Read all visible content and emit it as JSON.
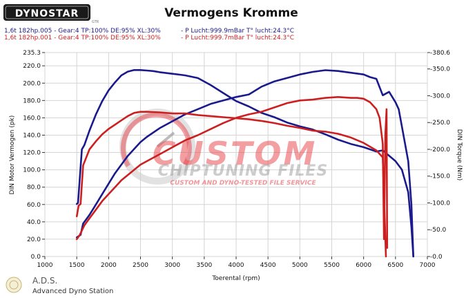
{
  "window": {
    "brand": "DYNOSTAR",
    "brand_sub": "GTR",
    "title": "Vermogens Kromme"
  },
  "runs": [
    {
      "info": "1,6t 182hp.005 - Gear:4 TP:100% DE:95% XL:30%",
      "cond": "- P Lucht:999.9mBar T° lucht:24.3°C",
      "color": "#1a1a8c"
    },
    {
      "info": "1,6t 182hp.001 - Gear:4 TP:100% DE:95% XL:30%",
      "cond": "- P Lucht:999.7mBar T° lucht:24.3°C",
      "color": "#cc1f1f"
    }
  ],
  "watermark": {
    "line1": "CUSTOM",
    "line2": "CHIPTUNING FILES",
    "line3": "CUSTOM AND DYNO-TESTED FILE SERVICE"
  },
  "footer": {
    "logo_text": "A.D.S.",
    "subtitle": "Advanced Dyno Station"
  },
  "colors": {
    "blue": "#1a1a8c",
    "red": "#cc1f1f",
    "grid": "#d4d4d4",
    "watermark_red": "#e8474e",
    "watermark_gray": "#8a8a8a"
  },
  "chart_data": {
    "type": "line",
    "title": "Vermogens Kromme",
    "xlabel": "Toerental (rpm)",
    "ylabel_left": "DIN Motor Vermogen (pk)",
    "ylabel_right": "DIN Torque (Nm)",
    "xlim": [
      1000,
      7000
    ],
    "ylim_left": [
      0,
      235.3
    ],
    "ylim_right": [
      0,
      380.6
    ],
    "x_ticks": [
      "1000",
      "1500",
      "2000",
      "2500",
      "3000",
      "3500",
      "4000",
      "4500",
      "5000",
      "5500",
      "6000",
      "6500",
      "7000"
    ],
    "y_ticks_left": [
      "0.0",
      "20.0",
      "40.0",
      "60.0",
      "80.0",
      "100.0",
      "120.0",
      "140.0",
      "160.0",
      "180.0",
      "200.0",
      "220.0",
      "235.3"
    ],
    "y_ticks_right": [
      "-0.0",
      "-50.0",
      "-100.0",
      "-150.0",
      "-200.0",
      "-250.0",
      "-300.0",
      "-350.0",
      "-380.6"
    ],
    "grid": true,
    "series": [
      {
        "name": "1,6t 182hp.005",
        "axis": "right",
        "color": "#1a1a8c",
        "x": [
          1500,
          1520,
          1580,
          1620,
          1700,
          1800,
          1900,
          2000,
          2100,
          2200,
          2300,
          2400,
          2500,
          2600,
          2700,
          2800,
          3000,
          3200,
          3400,
          3600,
          3800,
          4000,
          4200,
          4400,
          4600,
          4800,
          5000,
          5200,
          5400,
          5600,
          5800,
          6000,
          6200,
          6300,
          6400,
          6500,
          6600,
          6700,
          6750,
          6780
        ],
        "y": [
          98,
          100,
          200,
          208,
          235,
          265,
          290,
          310,
          325,
          338,
          345,
          348,
          348,
          347,
          346,
          344,
          341,
          338,
          333,
          320,
          305,
          290,
          280,
          268,
          260,
          250,
          243,
          237,
          228,
          218,
          210,
          204,
          196,
          198,
          188,
          178,
          162,
          120,
          55,
          0
        ]
      },
      {
        "name": "1,6t 182hp.005",
        "axis": "left",
        "color": "#1a1a8c",
        "x": [
          1500,
          1560,
          1600,
          1700,
          1800,
          1900,
          2000,
          2100,
          2200,
          2300,
          2400,
          2500,
          2600,
          2800,
          3000,
          3200,
          3400,
          3600,
          3800,
          4000,
          4200,
          4400,
          4600,
          4800,
          5000,
          5200,
          5400,
          5600,
          5800,
          6000,
          6100,
          6200,
          6300,
          6400,
          6500,
          6550,
          6600,
          6700,
          6750,
          6780
        ],
        "y": [
          22,
          25,
          38,
          48,
          60,
          72,
          84,
          96,
          106,
          116,
          124,
          132,
          138,
          148,
          156,
          164,
          170,
          176,
          180,
          184,
          187,
          196,
          202,
          206,
          210,
          213,
          215,
          214,
          212,
          210,
          207,
          205,
          186,
          190,
          178,
          170,
          150,
          110,
          60,
          0
        ]
      },
      {
        "name": "1,6t 182hp.001",
        "axis": "right",
        "color": "#cc1f1f",
        "x": [
          1500,
          1530,
          1560,
          1600,
          1700,
          1800,
          1900,
          2000,
          2100,
          2200,
          2300,
          2400,
          2500,
          2600,
          2800,
          3000,
          3200,
          3400,
          3600,
          3800,
          4000,
          4200,
          4400,
          4600,
          4800,
          5000,
          5200,
          5400,
          5600,
          5800,
          6000,
          6100,
          6200,
          6300,
          6350
        ],
        "y": [
          75,
          95,
          98,
          170,
          200,
          215,
          228,
          238,
          246,
          254,
          262,
          268,
          270,
          270,
          269,
          267,
          267,
          264,
          262,
          260,
          258,
          256,
          253,
          249,
          244,
          240,
          235,
          233,
          229,
          222,
          212,
          205,
          198,
          185,
          0
        ]
      },
      {
        "name": "1,6t 182hp.001",
        "axis": "left",
        "color": "#cc1f1f",
        "x": [
          1500,
          1540,
          1580,
          1620,
          1700,
          1800,
          1900,
          2000,
          2100,
          2200,
          2300,
          2400,
          2500,
          2600,
          2800,
          3000,
          3200,
          3400,
          3600,
          3800,
          4000,
          4200,
          4400,
          4600,
          4800,
          5000,
          5200,
          5400,
          5600,
          5800,
          5900,
          6000,
          6100,
          6200,
          6250,
          6300,
          6320,
          6340,
          6360,
          6370
        ],
        "y": [
          20,
          24,
          30,
          36,
          44,
          54,
          64,
          72,
          80,
          88,
          94,
          100,
          106,
          110,
          118,
          126,
          134,
          140,
          147,
          154,
          160,
          164,
          167,
          172,
          177,
          180,
          181,
          183,
          184,
          183,
          183,
          182,
          178,
          170,
          160,
          130,
          20,
          140,
          170,
          10
        ]
      }
    ]
  }
}
